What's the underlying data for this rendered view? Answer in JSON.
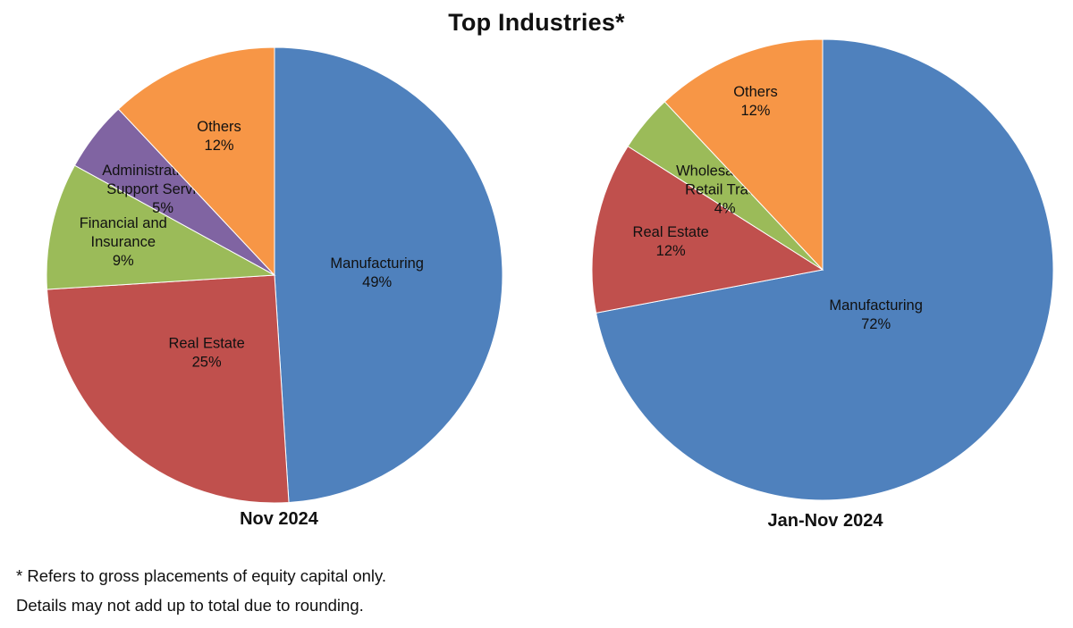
{
  "title": "Top Industries*",
  "notes": [
    "* Refers to gross placements of equity capital only.",
    "Details may not add up to total due to rounding."
  ],
  "chart_data": [
    {
      "type": "pie",
      "caption": "Nov 2024",
      "start_angle_deg": 0,
      "direction": "clockwise",
      "slices": [
        {
          "label": [
            "Manufacturing"
          ],
          "value_label": "49%",
          "value": 49,
          "color": "#4F81BD"
        },
        {
          "label": [
            "Real Estate"
          ],
          "value_label": "25%",
          "value": 25,
          "color": "#C0504D"
        },
        {
          "label": [
            "Financial and",
            "Insurance"
          ],
          "value_label": "9%",
          "value": 9,
          "color": "#9BBB59"
        },
        {
          "label": [
            "Administrative and",
            "Support Services"
          ],
          "value_label": "5%",
          "value": 5,
          "color": "#8064A2"
        },
        {
          "label": [
            "Others"
          ],
          "value_label": "12%",
          "value": 12,
          "color": "#F79646"
        }
      ]
    },
    {
      "type": "pie",
      "caption": "Jan-Nov 2024",
      "start_angle_deg": 0,
      "direction": "clockwise",
      "slices": [
        {
          "label": [
            "Manufacturing"
          ],
          "value_label": "72%",
          "value": 72,
          "color": "#4F81BD"
        },
        {
          "label": [
            "Real Estate"
          ],
          "value_label": "12%",
          "value": 12,
          "color": "#C0504D"
        },
        {
          "label": [
            "Wholesale and",
            "Retail Trade"
          ],
          "value_label": "4%",
          "value": 4,
          "color": "#9BBB59"
        },
        {
          "label": [
            "Others"
          ],
          "value_label": "12%",
          "value": 12,
          "color": "#F79646"
        }
      ]
    }
  ]
}
